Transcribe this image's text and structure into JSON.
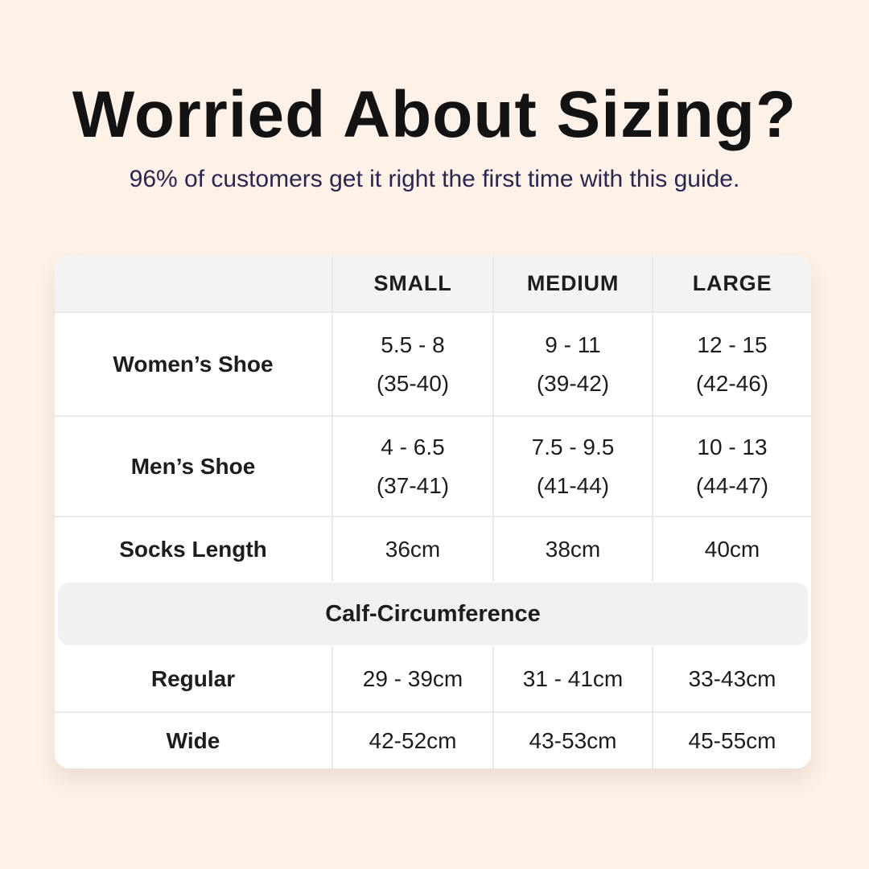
{
  "page": {
    "title": "Worried About Sizing?",
    "subtitle": "96% of customers get it right the first time with this guide.",
    "colors": {
      "background": "#fdf1e8",
      "title_text": "#131313",
      "subtitle_text": "#2b2650",
      "card_background": "#ffffff",
      "header_background": "#f4f3f4",
      "section_band_background": "#f2f1f2",
      "divider": "#eae8e9",
      "table_text": "#1d1d1f"
    }
  },
  "size_table": {
    "header": {
      "blank": "",
      "small": "SMALL",
      "medium": "MEDIUM",
      "large": "LARGE"
    },
    "shoe_rows": [
      {
        "label": "Women’s Shoe",
        "small_line1": "5.5 - 8",
        "small_line2": "(35-40)",
        "medium_line1": "9 - 11",
        "medium_line2": "(39-42)",
        "large_line1": "12 - 15",
        "large_line2": "(42-46)"
      },
      {
        "label": "Men’s Shoe",
        "small_line1": "4 - 6.5",
        "small_line2": "(37-41)",
        "medium_line1": "7.5 - 9.5",
        "medium_line2": "(41-44)",
        "large_line1": "10 - 13",
        "large_line2": "(44-47)"
      }
    ],
    "socks_row": {
      "label": "Socks Length",
      "small": "36cm",
      "medium": "38cm",
      "large": "40cm"
    },
    "section_header": "Calf-Circumference",
    "calf_rows": [
      {
        "label": "Regular",
        "small": "29 - 39cm",
        "medium": "31 - 41cm",
        "large": "33-43cm"
      },
      {
        "label": "Wide",
        "small": "42-52cm",
        "medium": "43-53cm",
        "large": "45-55cm"
      }
    ]
  }
}
